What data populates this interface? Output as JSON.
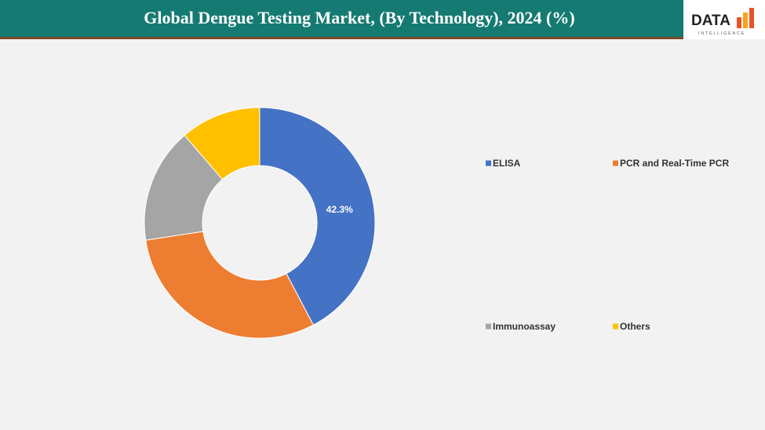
{
  "chart_data": {
    "type": "donut",
    "title": "Global Dengue Testing Market, (By Technology), 2024 (%)",
    "categories": [
      "ELISA",
      "PCR and Real-Time PCR",
      "Immunoassay",
      "Others"
    ],
    "values": [
      42.3,
      30.3,
      16.1,
      11.3
    ],
    "value_labels": [
      "42.3%",
      null,
      null,
      null
    ],
    "colors": [
      "#4472c4",
      "#ed7d31",
      "#a5a5a5",
      "#ffc000"
    ],
    "legend": "right"
  },
  "logo": {
    "name": "DATA",
    "tagline": "INTELLIGENCE"
  }
}
